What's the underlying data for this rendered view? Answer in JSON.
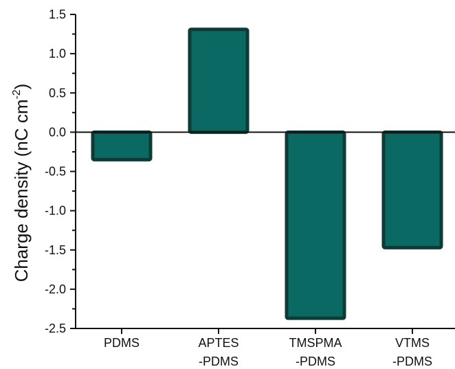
{
  "chart_data": {
    "type": "bar",
    "categories": [
      [
        "PDMS"
      ],
      [
        "APTES",
        "-PDMS"
      ],
      [
        "TMSPMA",
        "-PDMS"
      ],
      [
        "VTMS",
        "-PDMS"
      ]
    ],
    "values": [
      -0.35,
      1.31,
      -2.37,
      -1.47
    ],
    "ylabel": {
      "main": "Charge density (nC cm",
      "sup": "-2",
      "end": ")"
    },
    "ylim": [
      -2.5,
      1.5
    ],
    "yticks": [
      "-2.5",
      "-2.0",
      "-1.5",
      "-1.0",
      "-0.5",
      "0.0",
      "0.5",
      "1.0",
      "1.5"
    ],
    "grid": false,
    "legend": "none",
    "colors": {
      "bar_fill": "#0b6963",
      "bar_edge": "#0f3b37",
      "axis": "#111111"
    }
  }
}
